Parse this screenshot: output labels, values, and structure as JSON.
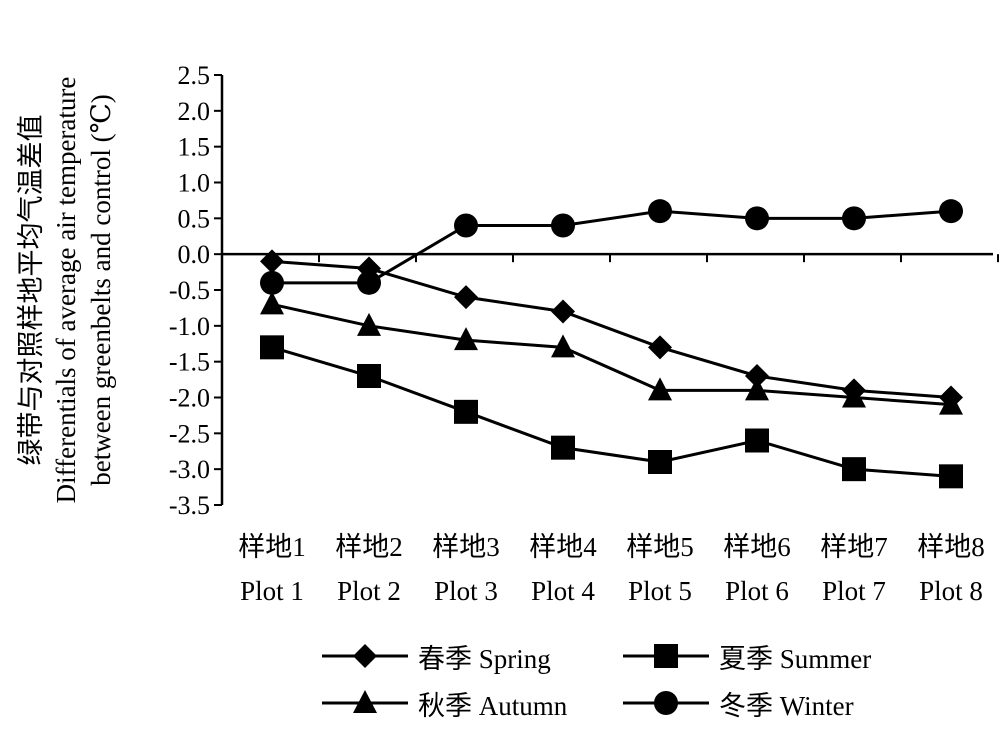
{
  "chart_data": {
    "type": "line",
    "ylabel_cn": "绿带与对照样地平均气温差值",
    "ylabel_en_1": "Differentials of average air temperature",
    "ylabel_en_2": "between greenbelts and control (℃)",
    "categories_cn": [
      "样地1",
      "样地2",
      "样地3",
      "样地4",
      "样地5",
      "样地6",
      "样地7",
      "样地8"
    ],
    "categories_en": [
      "Plot 1",
      "Plot 2",
      "Plot 3",
      "Plot 4",
      "Plot 5",
      "Plot 6",
      "Plot 7",
      "Plot 8"
    ],
    "ylim": [
      -3.5,
      2.5
    ],
    "yticks": [
      "2.5",
      "2.0",
      "1.5",
      "1.0",
      "0.5",
      "0.0",
      "-0.5",
      "-1.0",
      "-1.5",
      "-2.0",
      "-2.5",
      "-3.0",
      "-3.5"
    ],
    "series": [
      {
        "name": "春季 Spring",
        "marker": "diamond",
        "values": [
          -0.1,
          -0.2,
          -0.6,
          -0.8,
          -1.3,
          -1.7,
          -1.9,
          -2.0
        ]
      },
      {
        "name": "夏季 Summer",
        "marker": "square",
        "values": [
          -1.3,
          -1.7,
          -2.2,
          -2.7,
          -2.9,
          -2.6,
          -3.0,
          -3.1
        ]
      },
      {
        "name": "秋季 Autumn",
        "marker": "triangle",
        "values": [
          -0.7,
          -1.0,
          -1.2,
          -1.3,
          -1.9,
          -1.9,
          -2.0,
          -2.1
        ]
      },
      {
        "name": "冬季 Winter",
        "marker": "circle",
        "values": [
          -0.4,
          -0.4,
          0.4,
          0.4,
          0.6,
          0.5,
          0.5,
          0.6
        ]
      }
    ],
    "legend_position": "bottom",
    "grid": false,
    "color": "#000000"
  }
}
